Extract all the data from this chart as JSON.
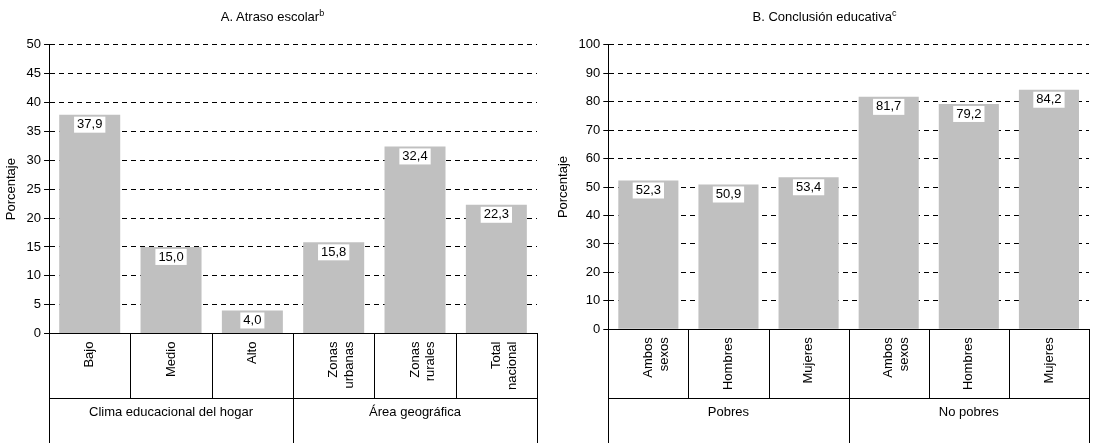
{
  "chart_data": [
    {
      "type": "bar",
      "title": "A. Atraso escolar$^{b}$",
      "ylabel": "Porcentaje",
      "categories": [
        "Bajo",
        "Medio",
        "Alto",
        "Zonas urbanas",
        "Zonas rurales",
        "Total nacional"
      ],
      "values": [
        37.9,
        15.0,
        4.0,
        15.8,
        32.4,
        22.3
      ],
      "value_labels": [
        "37,9",
        "15,0",
        "4,0",
        "15,8",
        "32,4",
        "22,3"
      ],
      "color": "#c0c0c0",
      "ylim": [
        0,
        50
      ],
      "yticks": [
        0,
        5,
        10,
        15,
        20,
        25,
        30,
        35,
        40,
        45,
        50
      ],
      "grid": "y",
      "line_style": "dashed",
      "annotations": [
        "Clima educacional del hogar",
        "Área geográfica"
      ]
    },
    {
      "type": "bar",
      "title": "B. Conclusión educativa$^{c}$",
      "ylabel": "Porcentaje",
      "categories": [
        "Ambos sexos",
        "Hombres",
        "Mujeres",
        "Ambos sexos",
        "Hombres",
        "Mujeres"
      ],
      "values": [
        52.3,
        50.9,
        53.4,
        81.7,
        79.2,
        84.2
      ],
      "value_labels": [
        "52,3",
        "50,9",
        "53,4",
        "81,7",
        "79,2",
        "84,2"
      ],
      "color": "#c0c0c0",
      "ylim": [
        0,
        100
      ],
      "yticks": [
        0,
        10,
        20,
        30,
        40,
        50,
        60,
        70,
        80,
        90,
        100
      ],
      "grid": "y",
      "line_style": "dashed",
      "annotations": [
        "Pobres",
        "No pobres"
      ]
    }
  ]
}
